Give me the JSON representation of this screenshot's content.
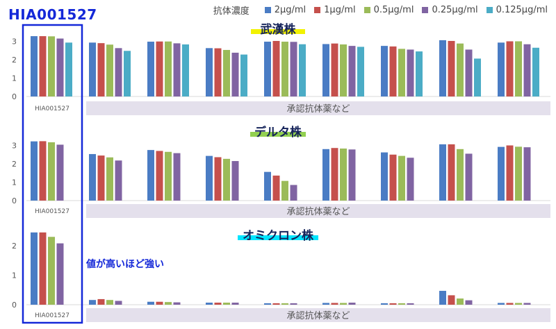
{
  "header": {
    "antibody_id": "HIA001527",
    "legend_title": "抗体濃度",
    "note": "値が高いほど強い"
  },
  "colors": {
    "highlight_box": "#1428d8",
    "band": "#e4e0ec"
  },
  "chart_data": [
    {
      "type": "bar",
      "title": "武漢株",
      "title_highlight": "#f2f200",
      "ylim": [
        0,
        3.3
      ],
      "yticks": [
        0,
        1,
        2,
        3
      ],
      "hia_label": "HIA001527",
      "band_label": "承認抗体薬など",
      "groups": 9,
      "series": [
        {
          "name": "2μg/ml",
          "color": "#4a7cc4",
          "values": [
            3.28,
            2.93,
            2.98,
            2.63,
            2.98,
            2.85,
            2.75,
            3.06,
            2.93
          ]
        },
        {
          "name": "1μg/ml",
          "color": "#c5504c",
          "values": [
            3.28,
            2.9,
            2.99,
            2.62,
            3.02,
            2.88,
            2.72,
            3.02,
            3.0
          ]
        },
        {
          "name": "0.5μg/ml",
          "color": "#9bbb59",
          "values": [
            3.27,
            2.82,
            2.99,
            2.53,
            2.98,
            2.83,
            2.59,
            2.88,
            3.0
          ]
        },
        {
          "name": "0.25μg/ml",
          "color": "#8064a2",
          "values": [
            3.15,
            2.63,
            2.89,
            2.38,
            2.97,
            2.75,
            2.55,
            2.55,
            2.84
          ]
        },
        {
          "name": "0.125μg/ml",
          "color": "#4bacc6",
          "values": [
            2.93,
            2.48,
            2.83,
            2.28,
            2.84,
            2.7,
            2.45,
            2.06,
            2.65
          ]
        }
      ]
    },
    {
      "type": "bar",
      "title": "デルタ株",
      "title_highlight": "#92d050",
      "ylim": [
        0,
        3.3
      ],
      "yticks": [
        0,
        1,
        2,
        3
      ],
      "hia_label": "HIA001527",
      "band_label": "承認抗体薬など",
      "groups": 9,
      "series": [
        {
          "name": "2μg/ml",
          "color": "#4a7cc4",
          "values": [
            3.22,
            2.53,
            2.75,
            2.43,
            1.56,
            2.8,
            2.62,
            3.06,
            2.92
          ]
        },
        {
          "name": "1μg/ml",
          "color": "#c5504c",
          "values": [
            3.23,
            2.45,
            2.7,
            2.36,
            1.36,
            2.86,
            2.5,
            3.06,
            3.0
          ]
        },
        {
          "name": "0.5μg/ml",
          "color": "#9bbb59",
          "values": [
            3.17,
            2.35,
            2.65,
            2.27,
            1.07,
            2.83,
            2.43,
            2.8,
            2.93
          ]
        },
        {
          "name": "0.25μg/ml",
          "color": "#8064a2",
          "values": [
            3.04,
            2.18,
            2.58,
            2.15,
            0.85,
            2.78,
            2.33,
            2.55,
            2.9
          ]
        }
      ]
    },
    {
      "type": "bar",
      "title": "オミクロン株",
      "title_highlight": "#00e5ff",
      "ylim": [
        0,
        2.5
      ],
      "yticks": [
        0,
        1,
        2
      ],
      "hia_label": "HIA001527",
      "band_label": "承認抗体薬など",
      "groups": 9,
      "series": [
        {
          "name": "2μg/ml",
          "color": "#4a7cc4",
          "values": [
            2.45,
            0.16,
            0.1,
            0.07,
            0.05,
            0.06,
            0.05,
            0.47,
            0.06
          ]
        },
        {
          "name": "1μg/ml",
          "color": "#c5504c",
          "values": [
            2.45,
            0.19,
            0.1,
            0.07,
            0.05,
            0.06,
            0.05,
            0.32,
            0.06
          ]
        },
        {
          "name": "0.5μg/ml",
          "color": "#9bbb59",
          "values": [
            2.3,
            0.16,
            0.09,
            0.07,
            0.05,
            0.06,
            0.05,
            0.21,
            0.06
          ]
        },
        {
          "name": "0.25μg/ml",
          "color": "#8064a2",
          "values": [
            2.08,
            0.13,
            0.08,
            0.07,
            0.05,
            0.07,
            0.05,
            0.15,
            0.06
          ]
        }
      ]
    }
  ]
}
